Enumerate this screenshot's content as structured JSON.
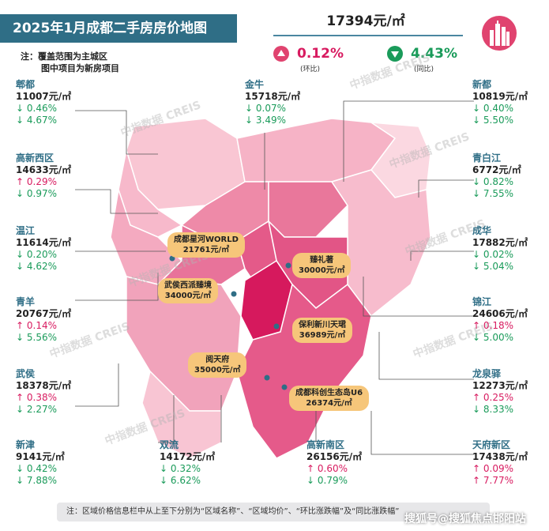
{
  "title": "2025年1月成都二手房房价地图",
  "note": [
    "注：覆盖范围为主城区",
    "图中项目为新房项目"
  ],
  "overall": {
    "price": "17394元/㎡",
    "mom_value": "0.12%",
    "mom_label": "(环比)",
    "yoy_value": "4.43%",
    "yoy_label": "(同比)"
  },
  "colors": {
    "title_bg": "#2f6e86",
    "up": "#d81b60",
    "down": "#1a9b5a",
    "pill": "#f6c67a"
  },
  "districts": [
    {
      "name": "郫都",
      "price": "11007元/㎡",
      "mom": "↓ 0.46%",
      "yoy": "↓ 4.67%",
      "mom_dir": "down",
      "yoy_dir": "down"
    },
    {
      "name": "金牛",
      "price": "15718元/㎡",
      "mom": "↓ 0.07%",
      "yoy": "↓ 3.49%",
      "mom_dir": "down",
      "yoy_dir": "down"
    },
    {
      "name": "新都",
      "price": "10819元/㎡",
      "mom": "↓ 0.40%",
      "yoy": "↓ 5.50%",
      "mom_dir": "down",
      "yoy_dir": "down"
    },
    {
      "name": "高新西区",
      "price": "14633元/㎡",
      "mom": "↑ 0.29%",
      "yoy": "↓ 0.97%",
      "mom_dir": "up",
      "yoy_dir": "down"
    },
    {
      "name": "青白江",
      "price": "6772元/㎡",
      "mom": "↓ 0.82%",
      "yoy": "↓ 7.55%",
      "mom_dir": "down",
      "yoy_dir": "down"
    },
    {
      "name": "温江",
      "price": "11614元/㎡",
      "mom": "↓ 0.20%",
      "yoy": "↓ 4.62%",
      "mom_dir": "down",
      "yoy_dir": "down"
    },
    {
      "name": "成华",
      "price": "17882元/㎡",
      "mom": "↓ 0.02%",
      "yoy": "↓ 5.04%",
      "mom_dir": "down",
      "yoy_dir": "down"
    },
    {
      "name": "青羊",
      "price": "20767元/㎡",
      "mom": "↑ 0.14%",
      "yoy": "↓ 5.56%",
      "mom_dir": "up",
      "yoy_dir": "down"
    },
    {
      "name": "锦江",
      "price": "24606元/㎡",
      "mom": "↑ 0.18%",
      "yoy": "↓ 5.00%",
      "mom_dir": "up",
      "yoy_dir": "down"
    },
    {
      "name": "武侯",
      "price": "18378元/㎡",
      "mom": "↑ 0.38%",
      "yoy": "↓ 2.27%",
      "mom_dir": "up",
      "yoy_dir": "down"
    },
    {
      "name": "龙泉驿",
      "price": "12273元/㎡",
      "mom": "↑ 0.25%",
      "yoy": "↓ 8.33%",
      "mom_dir": "up",
      "yoy_dir": "down"
    },
    {
      "name": "新津",
      "price": "9141元/㎡",
      "mom": "↓ 0.42%",
      "yoy": "↓ 7.88%",
      "mom_dir": "down",
      "yoy_dir": "down"
    },
    {
      "name": "双流",
      "price": "14172元/㎡",
      "mom": "↓ 0.32%",
      "yoy": "↓ 6.62%",
      "mom_dir": "down",
      "yoy_dir": "down"
    },
    {
      "name": "高新南区",
      "price": "26156元/㎡",
      "mom": "↑ 0.60%",
      "yoy": "↓ 0.79%",
      "mom_dir": "up",
      "yoy_dir": "down"
    },
    {
      "name": "天府新区",
      "price": "17438元/㎡",
      "mom": "↑ 0.09%",
      "yoy": "↑ 7.77%",
      "mom_dir": "up",
      "yoy_dir": "up"
    }
  ],
  "projects": [
    {
      "name": "成都星河WORLD",
      "price": "21761元/㎡"
    },
    {
      "name": "臻礼著",
      "price": "30000元/㎡"
    },
    {
      "name": "武侯西派臻境",
      "price": "34000元/㎡"
    },
    {
      "name": "保利新川天珺",
      "price": "36989元/㎡"
    },
    {
      "name": "阅天府",
      "price": "35000元/㎡"
    },
    {
      "name": "成都科创生态岛U6",
      "price": "26374元/㎡"
    }
  ],
  "watermark": "中指数据 CREIS",
  "footer": "注：区域价格信息栏中从上至下分别为“区域名称”、“区域均价”、“环比涨跌幅”及“同比涨跌幅”",
  "bottom_watermark": "搜狐号@搜狐焦点邯阳站"
}
